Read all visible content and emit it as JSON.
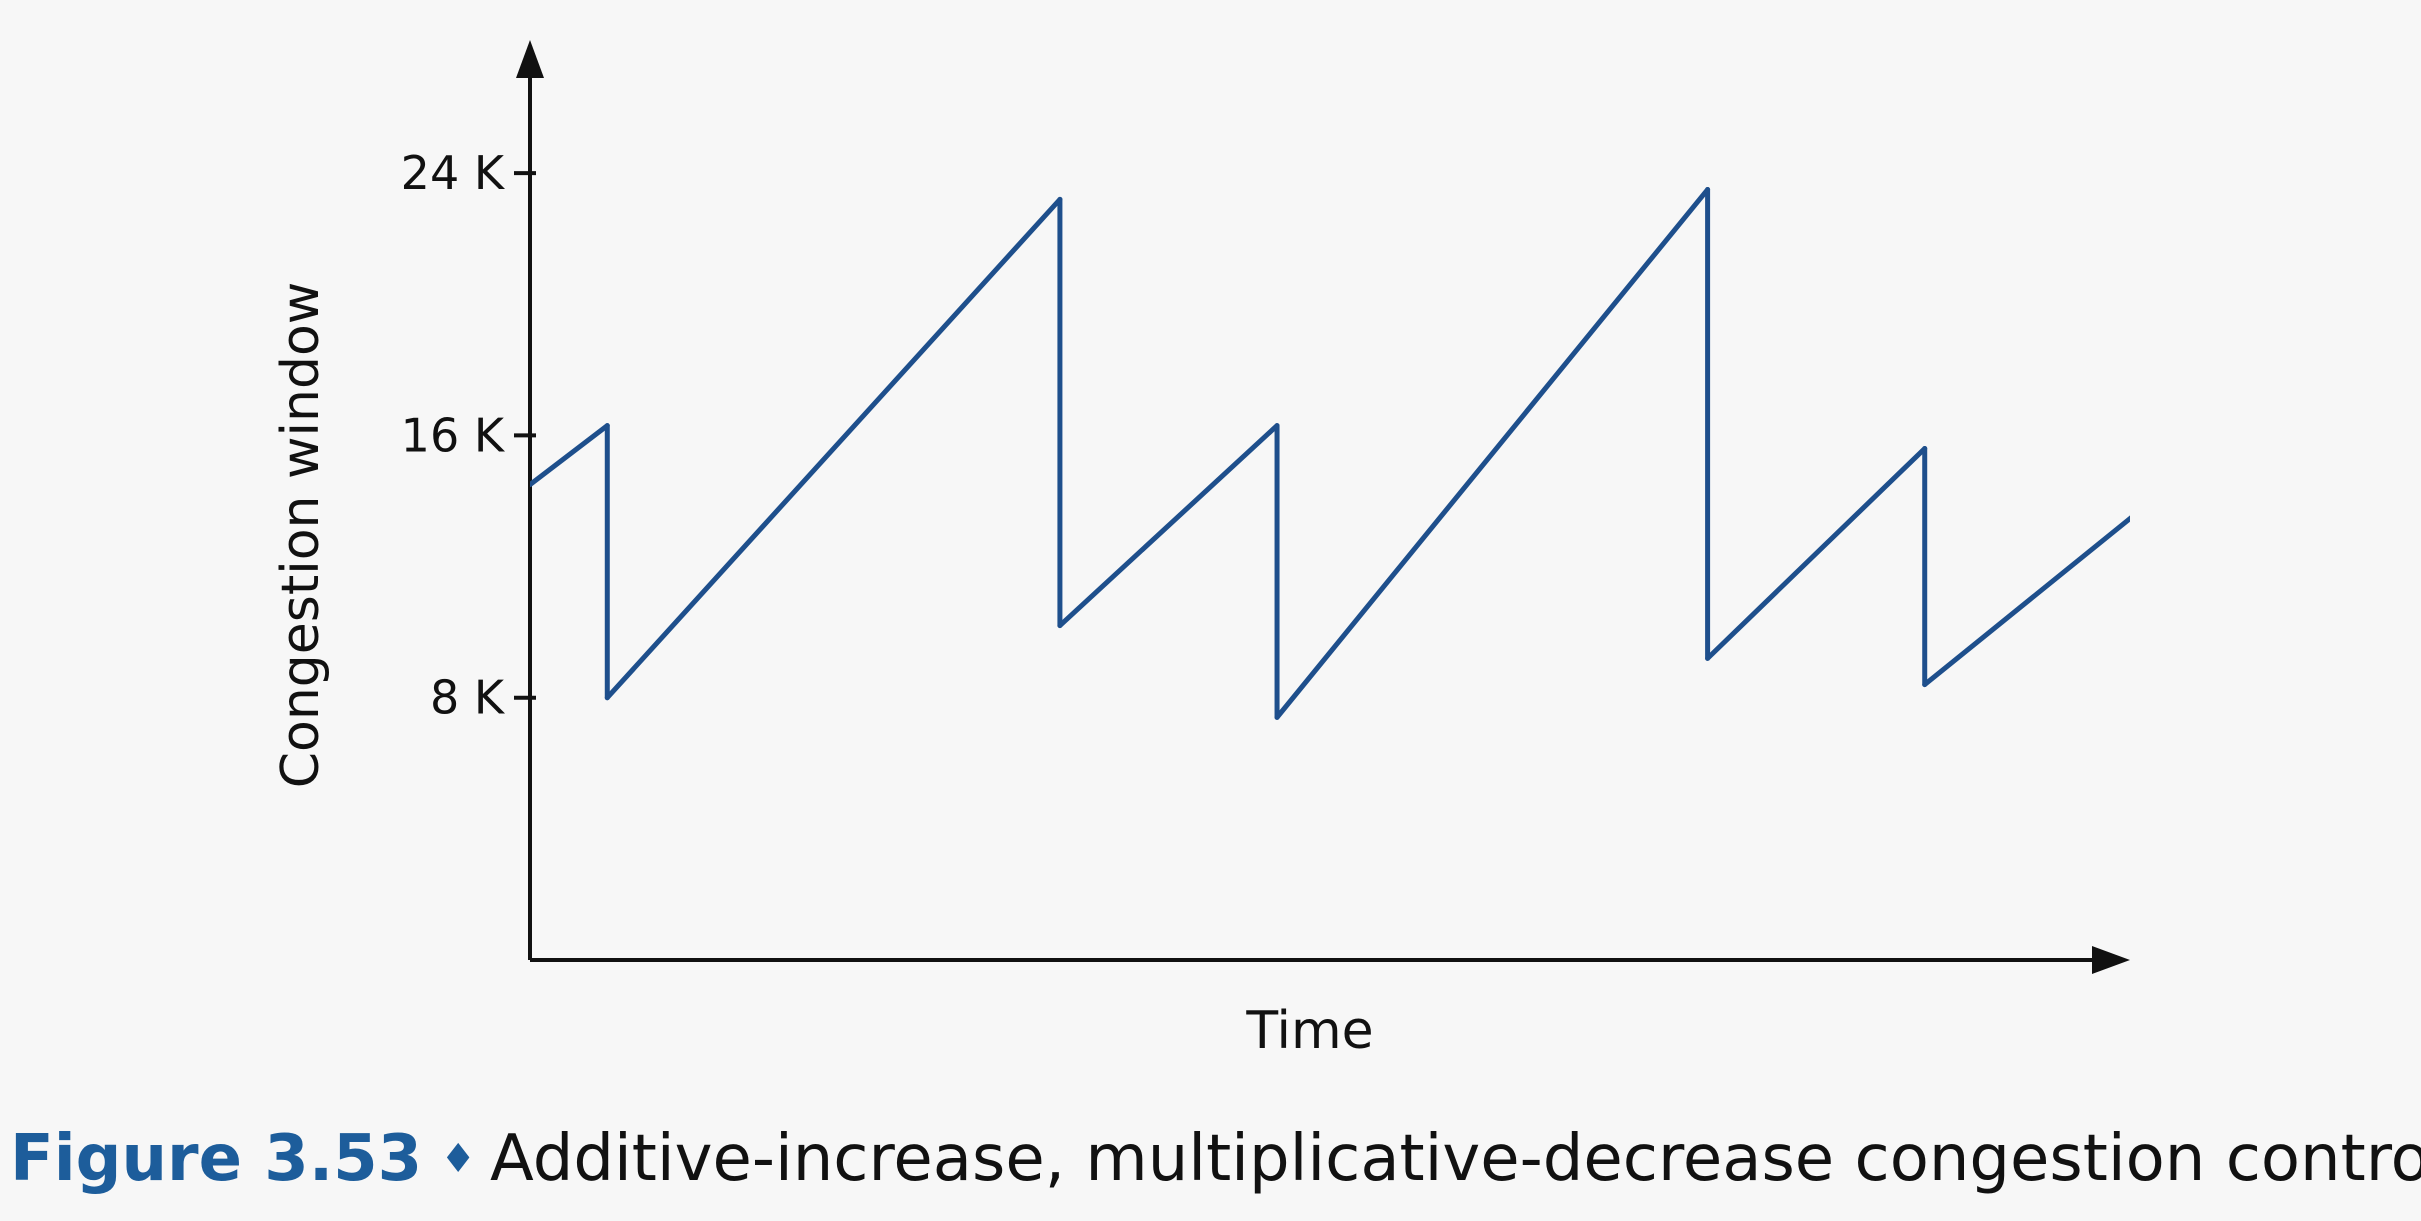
{
  "chart_data": {
    "type": "line",
    "xlabel": "Time",
    "ylabel": "Congestion window",
    "y_ticks": [
      {
        "value": 8,
        "label": "8 K"
      },
      {
        "value": 16,
        "label": "16 K"
      },
      {
        "value": 24,
        "label": "24 K"
      }
    ],
    "x_ticks": [],
    "ylim": [
      0,
      28
    ],
    "xlim": [
      0,
      40
    ],
    "grid": false,
    "legend": "none",
    "series": [
      {
        "points": [
          [
            0,
            14.5
          ],
          [
            2.1,
            16.3
          ],
          [
            2.1,
            8.0
          ],
          [
            14.4,
            23.2
          ],
          [
            14.4,
            10.2
          ],
          [
            20.3,
            16.3
          ],
          [
            20.3,
            7.4
          ],
          [
            32.0,
            23.5
          ],
          [
            32.0,
            9.2
          ],
          [
            37.9,
            15.6
          ],
          [
            37.9,
            8.4
          ],
          [
            45.5,
            15.3
          ]
        ]
      }
    ],
    "colors": {
      "line": "#1e4f8c",
      "axis": "#111111"
    }
  },
  "caption": {
    "figure_number": "Figure 3.53",
    "symbol": "♦",
    "text": "Additive-increase, multiplicative-decrease congestion control"
  }
}
